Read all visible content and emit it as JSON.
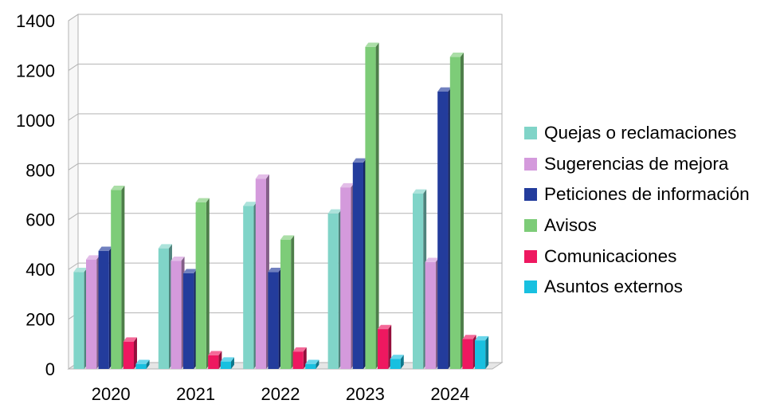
{
  "chart_data": {
    "type": "bar",
    "categories": [
      "2020",
      "2021",
      "2022",
      "2023",
      "2024"
    ],
    "series": [
      {
        "name": "Quejas o reclamaciones",
        "color": "#80D4C8",
        "values": [
          390,
          485,
          655,
          625,
          705
        ]
      },
      {
        "name": "Sugerencias de mejora",
        "color": "#D49ADC",
        "values": [
          440,
          435,
          765,
          730,
          430
        ]
      },
      {
        "name": "Peticiones de información",
        "color": "#233C9C",
        "values": [
          475,
          385,
          390,
          830,
          1115
        ]
      },
      {
        "name": "Avisos",
        "color": "#7DCC78",
        "values": [
          720,
          670,
          520,
          1295,
          1255
        ]
      },
      {
        "name": "Comunicaciones",
        "color": "#EE1860",
        "values": [
          110,
          55,
          70,
          160,
          120
        ]
      },
      {
        "name": "Asuntos externos",
        "color": "#18C0E0",
        "values": [
          20,
          30,
          20,
          40,
          115
        ]
      }
    ],
    "yticks": [
      "0",
      "200",
      "400",
      "600",
      "800",
      "1000",
      "1200",
      "1400"
    ],
    "ylim": [
      0,
      1400
    ],
    "grid": true,
    "legend_position": "right"
  }
}
